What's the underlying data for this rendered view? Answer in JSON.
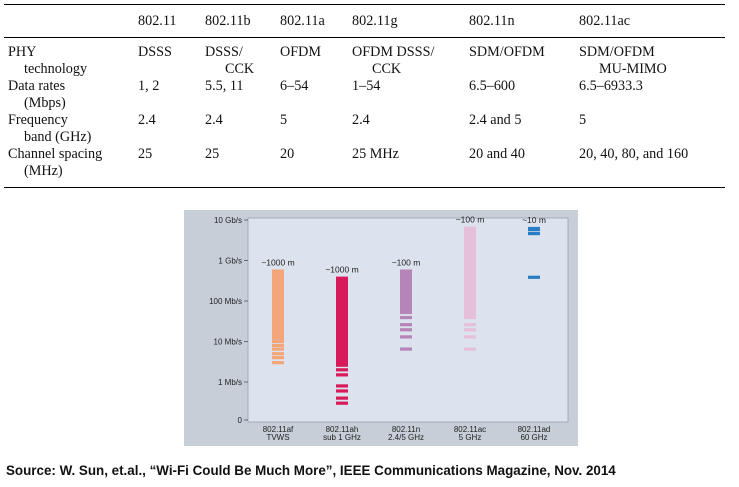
{
  "table": {
    "headers": [
      "",
      "802.11",
      "802.11b",
      "802.11a",
      "802.11g",
      "802.11n",
      "802.11ac"
    ],
    "rows": [
      {
        "label": [
          "PHY",
          "technology"
        ],
        "cells": [
          [
            "DSSS"
          ],
          [
            "DSSS/",
            "CCK"
          ],
          [
            "OFDM"
          ],
          [
            "OFDM DSSS/",
            "CCK"
          ],
          [
            "SDM/OFDM"
          ],
          [
            "SDM/OFDM",
            "MU-MIMO"
          ]
        ]
      },
      {
        "label": [
          "Data rates",
          "(Mbps)"
        ],
        "cells": [
          [
            "1, 2"
          ],
          [
            "5.5, 11"
          ],
          [
            "6–54"
          ],
          [
            "1–54"
          ],
          [
            "6.5–600"
          ],
          [
            "6.5–6933.3"
          ]
        ]
      },
      {
        "label": [
          "Frequency",
          "band (GHz)"
        ],
        "cells": [
          [
            "2.4"
          ],
          [
            "2.4"
          ],
          [
            "5"
          ],
          [
            "2.4"
          ],
          [
            "2.4 and 5"
          ],
          [
            "5"
          ]
        ]
      },
      {
        "label": [
          "Channel spacing",
          "(MHz)"
        ],
        "cells": [
          [
            "25"
          ],
          [
            "25"
          ],
          [
            "20"
          ],
          [
            "25 MHz"
          ],
          [
            "20 and 40"
          ],
          [
            "20, 40, 80, and 160"
          ]
        ]
      }
    ]
  },
  "chart_data": {
    "type": "bar",
    "y_scale": "log",
    "y_unit": "bit/s",
    "y_ticks": [
      {
        "value": 1,
        "label": "0"
      },
      {
        "value": 1000000,
        "label": "1 Mb/s"
      },
      {
        "value": 10000000,
        "label": "10 Mb/s"
      },
      {
        "value": 100000000,
        "label": "100 Mb/s"
      },
      {
        "value": 1000000000,
        "label": "1 Gb/s"
      },
      {
        "value": 10000000000,
        "label": "10 Gb/s"
      }
    ],
    "categories": [
      [
        "802.11af",
        "TVWS"
      ],
      [
        "802.11ah",
        "sub 1 GHz"
      ],
      [
        "802.11n",
        "2.4/5 GHz"
      ],
      [
        "802.11ac",
        "5 GHz"
      ],
      [
        "802.11ad",
        "60 GHz"
      ]
    ],
    "series": [
      {
        "range_label": "~1000 m",
        "min": 3000000,
        "max": 600000000,
        "color": "#f2a67a",
        "rates": [
          3000000,
          4000000,
          5000000,
          6500000,
          8000000,
          10000000,
          12000000,
          14000000,
          16000000,
          19000000
        ]
      },
      {
        "range_label": "~1000 m",
        "min": 300000,
        "max": 400000000,
        "color": "#d8195a",
        "rates": [
          300000,
          400000,
          600000,
          800000,
          1500000,
          2000000,
          2600000,
          2900000
        ]
      },
      {
        "range_label": "~100 m",
        "min": 6500000,
        "max": 600000000,
        "color": "#b585b8",
        "rates": [
          6500000,
          13000000,
          19500000,
          26000000,
          39000000,
          52000000
        ]
      },
      {
        "range_label": "~100 m",
        "min": 6500000,
        "max": 6900000000,
        "color": "#e6bfdb",
        "rates": [
          6500000,
          13000000,
          19500000,
          26000000,
          39000000
        ]
      },
      {
        "range_label": "~10 m",
        "min": 385000000,
        "max": 6760000000,
        "color": "#2a7cc4",
        "rates": [
          385000000,
          4620000000,
          5775000000
        ]
      }
    ]
  },
  "caption": "Source: W. Sun, et.al., “Wi-Fi Could Be Much More”, IEEE Communications Magazine, Nov. 2014"
}
